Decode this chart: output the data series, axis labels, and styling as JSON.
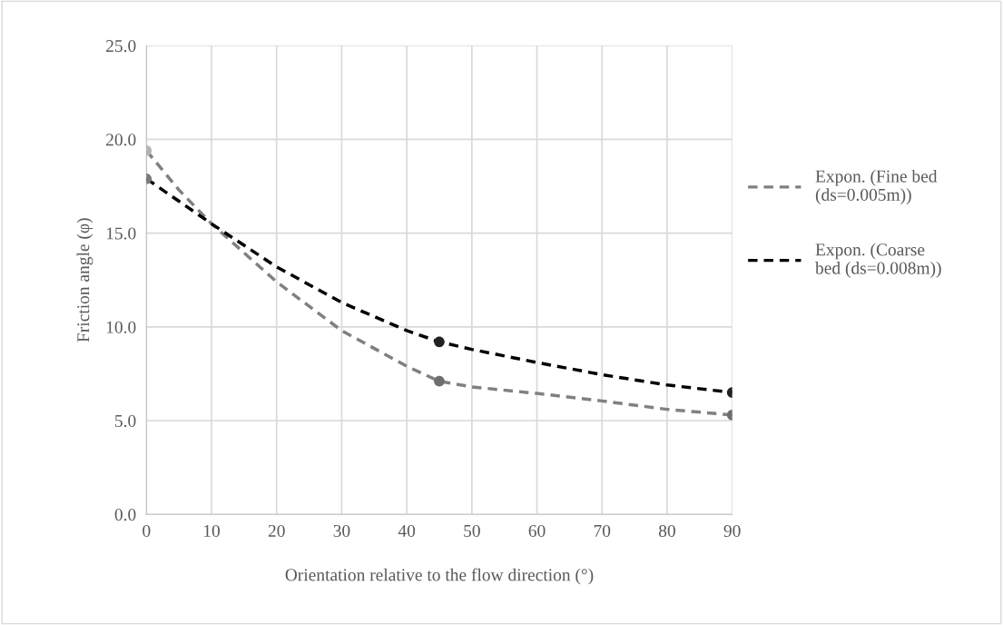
{
  "chart_data": {
    "type": "line",
    "xlabel": "Orientation relative to the flow direction (°)",
    "ylabel": "Friction angle (φ)",
    "xlim": [
      0,
      90
    ],
    "xticks": [
      0,
      10,
      20,
      30,
      40,
      50,
      60,
      70,
      80,
      90
    ],
    "ylim": [
      0,
      25
    ],
    "yticks": [
      {
        "value": 0,
        "label": "0.0"
      },
      {
        "value": 5,
        "label": "5.0"
      },
      {
        "value": 10,
        "label": "10.0"
      },
      {
        "value": 15,
        "label": "15.0"
      },
      {
        "value": 20,
        "label": "20.0"
      },
      {
        "value": 25,
        "label": "25.0"
      }
    ],
    "grid": true,
    "legend": "right",
    "series": [
      {
        "name": "Expon. (Fine bed (ds=0.005m))",
        "color": "#808080",
        "line_style": "dashed",
        "marker": "none",
        "x": [
          0,
          5,
          10,
          20,
          30,
          40,
          45,
          50,
          60,
          70,
          80,
          90
        ],
        "values": [
          19.4,
          17.3,
          15.5,
          12.4,
          9.8,
          7.9,
          7.1,
          6.8,
          6.45,
          6.05,
          5.6,
          5.3
        ]
      },
      {
        "name": "Expon. (Coarse bed (ds=0.008m))",
        "color": "#000000",
        "line_style": "dashed",
        "marker": "none",
        "x": [
          0,
          5,
          10,
          20,
          30,
          40,
          45,
          50,
          60,
          70,
          80,
          90
        ],
        "values": [
          17.9,
          16.7,
          15.5,
          13.2,
          11.3,
          9.8,
          9.2,
          8.8,
          8.1,
          7.45,
          6.9,
          6.5
        ]
      },
      {
        "type": "scatter",
        "marker": "circle",
        "x": [
          0,
          45,
          90
        ],
        "values": [
          19.4,
          7.1,
          5.3
        ],
        "colors": [
          "#b4b4b4",
          "#6e6e6e",
          "#6e6e6e"
        ]
      },
      {
        "type": "scatter",
        "marker": "circle",
        "x": [
          0,
          45,
          90
        ],
        "values": [
          17.9,
          9.2,
          6.5
        ],
        "colors": [
          "#7a7a7a",
          "#222222",
          "#222222"
        ]
      }
    ]
  }
}
